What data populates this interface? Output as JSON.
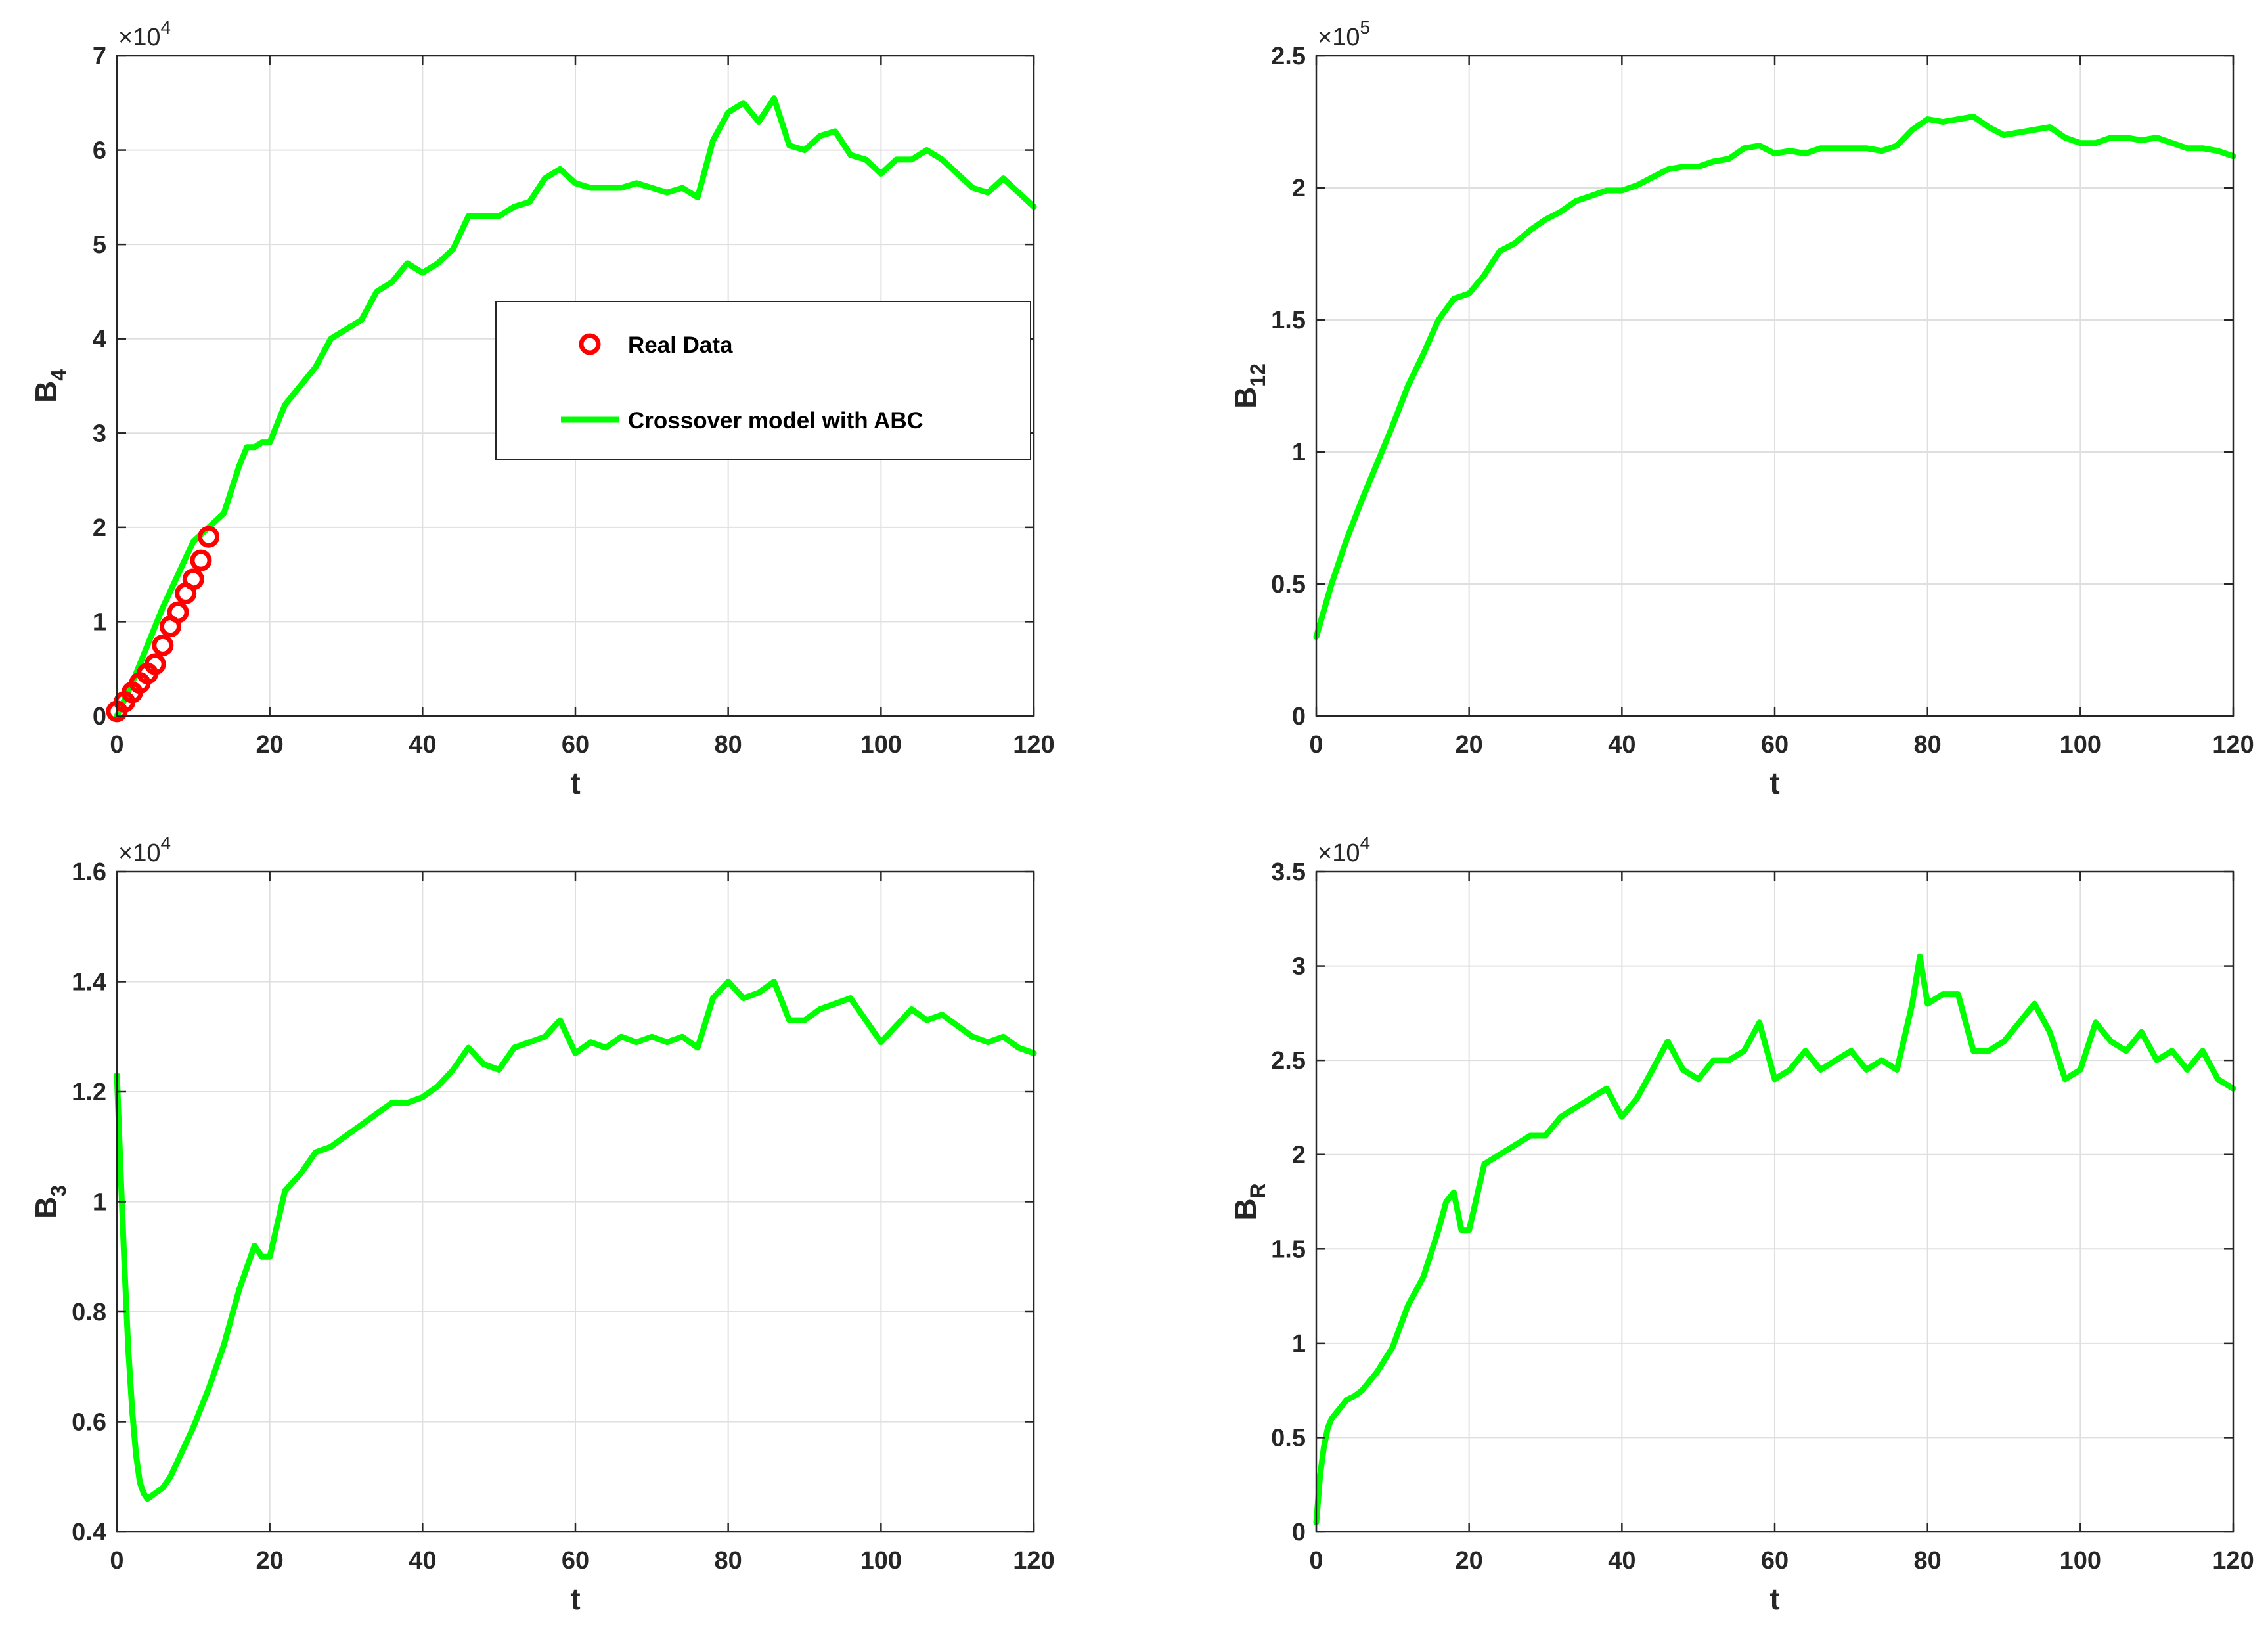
{
  "chart_data": [
    {
      "type": "line",
      "xlabel": "t",
      "ylabel": "B",
      "ylabel_sub": "4",
      "exponent": "4",
      "xlim": [
        0,
        120
      ],
      "ylim": [
        0,
        7
      ],
      "xticks": [
        0,
        20,
        40,
        60,
        80,
        100,
        120
      ],
      "yticks": [
        0,
        1,
        2,
        3,
        4,
        5,
        6,
        7
      ],
      "grid": true,
      "legend_placement": "center",
      "series": [
        {
          "name": "Crossover model with ABC",
          "kind": "line",
          "color": "#00ff00",
          "x": [
            0,
            2,
            4,
            6,
            8,
            10,
            12,
            14,
            16,
            17,
            18,
            19,
            20,
            22,
            24,
            26,
            28,
            30,
            32,
            34,
            36,
            38,
            40,
            42,
            44,
            46,
            48,
            50,
            52,
            54,
            56,
            58,
            60,
            62,
            64,
            66,
            68,
            70,
            72,
            74,
            76,
            78,
            80,
            82,
            84,
            86,
            88,
            90,
            92,
            94,
            96,
            98,
            100,
            102,
            104,
            106,
            108,
            110,
            112,
            114,
            116,
            118,
            120
          ],
          "y": [
            0.0,
            0.35,
            0.75,
            1.15,
            1.5,
            1.85,
            2.0,
            2.15,
            2.65,
            2.85,
            2.85,
            2.9,
            2.9,
            3.3,
            3.5,
            3.7,
            4.0,
            4.1,
            4.2,
            4.5,
            4.6,
            4.8,
            4.7,
            4.8,
            4.95,
            5.3,
            5.3,
            5.3,
            5.4,
            5.45,
            5.7,
            5.8,
            5.65,
            5.6,
            5.6,
            5.6,
            5.65,
            5.6,
            5.55,
            5.6,
            5.5,
            6.1,
            6.4,
            6.5,
            6.3,
            6.55,
            6.05,
            6.0,
            6.15,
            6.2,
            5.95,
            5.9,
            5.75,
            5.9,
            5.9,
            6.0,
            5.9,
            5.75,
            5.6,
            5.55,
            5.7,
            5.55,
            5.4
          ]
        },
        {
          "name": "Real Data",
          "kind": "marker",
          "color": "#ff0000",
          "x": [
            0,
            1,
            2,
            3,
            4,
            5,
            6,
            7,
            8,
            9,
            10,
            11,
            12
          ],
          "y": [
            0.05,
            0.15,
            0.25,
            0.35,
            0.45,
            0.55,
            0.75,
            0.95,
            1.1,
            1.3,
            1.45,
            1.65,
            1.9
          ]
        }
      ]
    },
    {
      "type": "line",
      "xlabel": "t",
      "ylabel": "B",
      "ylabel_sub": "12",
      "exponent": "5",
      "xlim": [
        0,
        120
      ],
      "ylim": [
        0,
        2.5
      ],
      "xticks": [
        0,
        20,
        40,
        60,
        80,
        100,
        120
      ],
      "yticks": [
        0,
        0.5,
        1,
        1.5,
        2,
        2.5
      ],
      "grid": true,
      "series": [
        {
          "kind": "line",
          "color": "#00ff00",
          "x": [
            0,
            2,
            4,
            6,
            8,
            10,
            12,
            14,
            16,
            18,
            20,
            22,
            24,
            26,
            28,
            30,
            32,
            34,
            36,
            38,
            40,
            42,
            44,
            46,
            48,
            50,
            52,
            54,
            56,
            58,
            60,
            62,
            64,
            66,
            68,
            70,
            72,
            74,
            76,
            78,
            80,
            82,
            84,
            86,
            88,
            90,
            92,
            94,
            96,
            98,
            100,
            102,
            104,
            106,
            108,
            110,
            112,
            114,
            116,
            118,
            120
          ],
          "y": [
            0.3,
            0.5,
            0.67,
            0.82,
            0.96,
            1.1,
            1.25,
            1.37,
            1.5,
            1.58,
            1.6,
            1.67,
            1.76,
            1.79,
            1.84,
            1.88,
            1.91,
            1.95,
            1.97,
            1.99,
            1.99,
            2.01,
            2.04,
            2.07,
            2.08,
            2.08,
            2.1,
            2.11,
            2.15,
            2.16,
            2.13,
            2.14,
            2.13,
            2.15,
            2.15,
            2.15,
            2.15,
            2.14,
            2.16,
            2.22,
            2.26,
            2.25,
            2.26,
            2.27,
            2.23,
            2.2,
            2.21,
            2.22,
            2.23,
            2.19,
            2.17,
            2.17,
            2.19,
            2.19,
            2.18,
            2.19,
            2.17,
            2.15,
            2.15,
            2.14,
            2.12
          ]
        }
      ]
    },
    {
      "type": "line",
      "xlabel": "t",
      "ylabel": "B",
      "ylabel_sub": "3",
      "exponent": "4",
      "xlim": [
        0,
        120
      ],
      "ylim": [
        0.4,
        1.6
      ],
      "xticks": [
        0,
        20,
        40,
        60,
        80,
        100,
        120
      ],
      "yticks": [
        0.4,
        0.6,
        0.8,
        1,
        1.2,
        1.4,
        1.6
      ],
      "grid": true,
      "series": [
        {
          "kind": "line",
          "color": "#00ff00",
          "x": [
            0,
            0.5,
            1,
            1.5,
            2,
            2.5,
            3,
            3.5,
            4,
            5,
            6,
            7,
            8,
            9,
            10,
            12,
            14,
            16,
            17,
            18,
            19,
            20,
            22,
            24,
            26,
            28,
            30,
            32,
            34,
            36,
            38,
            40,
            42,
            44,
            46,
            48,
            50,
            52,
            54,
            56,
            58,
            60,
            62,
            64,
            66,
            68,
            70,
            72,
            74,
            76,
            78,
            80,
            82,
            84,
            86,
            88,
            90,
            92,
            94,
            96,
            98,
            100,
            102,
            104,
            106,
            108,
            110,
            112,
            114,
            116,
            118,
            120
          ],
          "y": [
            1.23,
            1.05,
            0.88,
            0.73,
            0.62,
            0.54,
            0.49,
            0.47,
            0.46,
            0.47,
            0.48,
            0.5,
            0.53,
            0.56,
            0.59,
            0.66,
            0.74,
            0.84,
            0.88,
            0.92,
            0.9,
            0.9,
            1.02,
            1.05,
            1.09,
            1.1,
            1.12,
            1.14,
            1.16,
            1.18,
            1.18,
            1.19,
            1.21,
            1.24,
            1.28,
            1.25,
            1.24,
            1.28,
            1.29,
            1.3,
            1.33,
            1.27,
            1.29,
            1.28,
            1.3,
            1.29,
            1.3,
            1.29,
            1.3,
            1.28,
            1.37,
            1.4,
            1.37,
            1.38,
            1.4,
            1.33,
            1.33,
            1.35,
            1.36,
            1.37,
            1.33,
            1.29,
            1.32,
            1.35,
            1.33,
            1.34,
            1.32,
            1.3,
            1.29,
            1.3,
            1.28,
            1.27
          ]
        }
      ]
    },
    {
      "type": "line",
      "xlabel": "t",
      "ylabel": "B",
      "ylabel_sub": "R",
      "exponent": "4",
      "xlim": [
        0,
        120
      ],
      "ylim": [
        0,
        3.5
      ],
      "xticks": [
        0,
        20,
        40,
        60,
        80,
        100,
        120
      ],
      "yticks": [
        0,
        0.5,
        1,
        1.5,
        2,
        2.5,
        3,
        3.5
      ],
      "grid": true,
      "series": [
        {
          "kind": "line",
          "color": "#00ff00",
          "x": [
            0,
            0.5,
            1,
            1.5,
            2,
            3,
            4,
            5,
            6,
            8,
            10,
            12,
            14,
            16,
            17,
            18,
            19,
            20,
            22,
            24,
            26,
            28,
            30,
            32,
            34,
            36,
            38,
            40,
            42,
            44,
            46,
            48,
            50,
            52,
            54,
            56,
            58,
            60,
            62,
            64,
            66,
            68,
            70,
            72,
            74,
            76,
            78,
            79,
            80,
            82,
            84,
            86,
            88,
            90,
            92,
            94,
            96,
            98,
            100,
            102,
            104,
            106,
            108,
            110,
            112,
            114,
            116,
            118,
            120
          ],
          "y": [
            0.05,
            0.3,
            0.45,
            0.55,
            0.6,
            0.65,
            0.7,
            0.72,
            0.75,
            0.85,
            0.98,
            1.2,
            1.35,
            1.6,
            1.75,
            1.8,
            1.6,
            1.6,
            1.95,
            2.0,
            2.05,
            2.1,
            2.1,
            2.2,
            2.25,
            2.3,
            2.35,
            2.2,
            2.3,
            2.45,
            2.6,
            2.45,
            2.4,
            2.5,
            2.5,
            2.55,
            2.7,
            2.4,
            2.45,
            2.55,
            2.45,
            2.5,
            2.55,
            2.45,
            2.5,
            2.45,
            2.8,
            3.05,
            2.8,
            2.85,
            2.85,
            2.55,
            2.55,
            2.6,
            2.7,
            2.8,
            2.65,
            2.4,
            2.45,
            2.7,
            2.6,
            2.55,
            2.65,
            2.5,
            2.55,
            2.45,
            2.55,
            2.4,
            2.35
          ]
        }
      ]
    }
  ]
}
